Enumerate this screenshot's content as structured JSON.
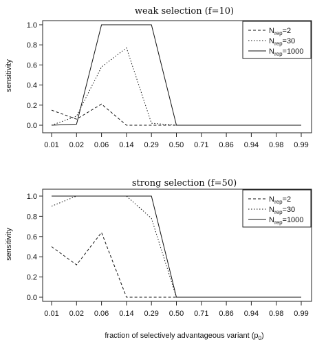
{
  "chart_data": [
    {
      "type": "line",
      "title": "weak selection (f=10)",
      "ylabel": "sensitivity",
      "xlabel": "",
      "categories": [
        "0.01",
        "0.02",
        "0.06",
        "0.14",
        "0.29",
        "0.50",
        "0.71",
        "0.86",
        "0.94",
        "0.98",
        "0.99"
      ],
      "ylim": [
        0,
        1
      ],
      "yticks": [
        "0.0",
        "0.2",
        "0.4",
        "0.6",
        "0.8",
        "1.0"
      ],
      "legend_position": "top-right",
      "series": [
        {
          "name": "N",
          "name_sub": "rep",
          "name_value": "=2",
          "dash": "dashed",
          "values": [
            0.15,
            0.06,
            0.21,
            0.0,
            0.0,
            0.0,
            0.0,
            0.0,
            0.0,
            0.0,
            0.0
          ]
        },
        {
          "name": "N",
          "name_sub": "rep",
          "name_value": "=30",
          "dash": "dotted",
          "values": [
            0.0,
            0.09,
            0.58,
            0.77,
            0.02,
            0.0,
            0.0,
            0.0,
            0.0,
            0.0,
            0.0
          ]
        },
        {
          "name": "N",
          "name_sub": "rep",
          "name_value": "=1000",
          "dash": "solid",
          "values": [
            0.0,
            0.01,
            1.0,
            1.0,
            1.0,
            0.0,
            0.0,
            0.0,
            0.0,
            0.0,
            0.0
          ]
        }
      ]
    },
    {
      "type": "line",
      "title": "strong selection (f=50)",
      "ylabel": "sensitivity",
      "xlabel": "fraction of selectively advantageous variant (p",
      "xlabel_sub": "0",
      "xlabel_end": ")",
      "categories": [
        "0.01",
        "0.02",
        "0.06",
        "0.14",
        "0.29",
        "0.50",
        "0.71",
        "0.86",
        "0.94",
        "0.98",
        "0.99"
      ],
      "ylim": [
        0,
        1
      ],
      "yticks": [
        "0.0",
        "0.2",
        "0.4",
        "0.6",
        "0.8",
        "1.0"
      ],
      "legend_position": "top-right",
      "series": [
        {
          "name": "N",
          "name_sub": "rep",
          "name_value": "=2",
          "dash": "dashed",
          "values": [
            0.5,
            0.32,
            0.64,
            0.0,
            0.0,
            0.0,
            0.0,
            0.0,
            0.0,
            0.0,
            0.0
          ]
        },
        {
          "name": "N",
          "name_sub": "rep",
          "name_value": "=30",
          "dash": "dotted",
          "values": [
            0.9,
            1.0,
            1.0,
            1.0,
            0.78,
            0.0,
            0.0,
            0.0,
            0.0,
            0.0,
            0.0
          ]
        },
        {
          "name": "N",
          "name_sub": "rep",
          "name_value": "=1000",
          "dash": "solid",
          "values": [
            1.0,
            1.0,
            1.0,
            1.0,
            1.0,
            0.0,
            0.0,
            0.0,
            0.0,
            0.0,
            0.0
          ]
        }
      ]
    }
  ]
}
